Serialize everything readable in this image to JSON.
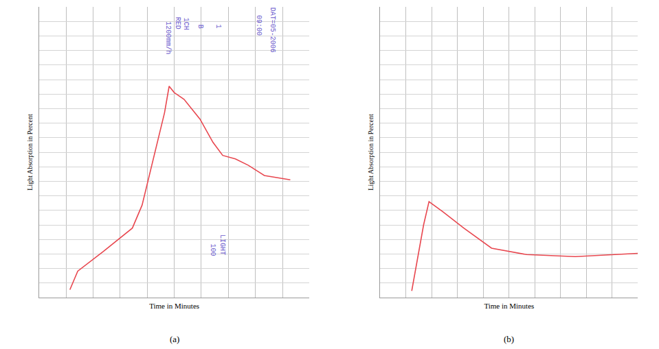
{
  "chart_data": [
    {
      "type": "line",
      "panel": "(a)",
      "x_label": "Time in Minutes",
      "y_label": "Light Absorption in Percent",
      "x": [
        11.4,
        14.3,
        23.8,
        34.5,
        38.1,
        42.9,
        46.4,
        48.1,
        50.0,
        53.6,
        59.5,
        64.3,
        67.9,
        72.6,
        77.4,
        83.3,
        92.9
      ],
      "values": [
        2.7,
        9.1,
        15.9,
        23.9,
        31.8,
        50.0,
        63.6,
        72.7,
        70.5,
        68.2,
        61.4,
        53.4,
        48.9,
        47.7,
        45.5,
        42.0,
        40.5
      ],
      "color": "#e8474f",
      "xlim": [
        0,
        100
      ],
      "ylim": [
        0,
        100
      ],
      "xticks": [
        0,
        10,
        20,
        30,
        40,
        50,
        60,
        70,
        80,
        90,
        100
      ],
      "yticks": [
        0,
        5,
        10,
        15,
        20,
        25,
        30,
        35,
        40,
        45,
        50,
        55,
        60,
        65,
        70,
        75,
        80,
        85,
        90,
        95,
        100
      ],
      "grid": true,
      "tick_labels": false,
      "annotations": [
        {
          "text": "1200mm/h",
          "x": 47.6,
          "y": 89.3
        },
        {
          "text": "RED",
          "x": 51.2,
          "y": 94.3
        },
        {
          "text": "1CH",
          "x": 54.3,
          "y": 94.3
        },
        {
          "text": "B",
          "x": 59.5,
          "y": 93.2
        },
        {
          "text": "1",
          "x": 66.2,
          "y": 93.2
        },
        {
          "text": "09:00",
          "x": 81.4,
          "y": 93.6
        },
        {
          "text": "DAT=05-2006",
          "x": 86.2,
          "y": 92.0
        },
        {
          "text": "100",
          "x": 64.3,
          "y": 16.4
        },
        {
          "text": "LIGHT",
          "x": 67.6,
          "y": 18.2
        }
      ],
      "annotation_color": "#6a5acd"
    },
    {
      "type": "line",
      "panel": "(b)",
      "x_label": "Time in Minutes",
      "y_label": "Light Absorption in Percent",
      "x": [
        12.2,
        14.9,
        16.8,
        18.9,
        24.3,
        32.4,
        43.2,
        56.8,
        75.7,
        100.0
      ],
      "values": [
        2.3,
        15.9,
        25.0,
        33.0,
        29.5,
        23.9,
        17.0,
        14.8,
        14.1,
        15.2
      ],
      "color": "#e8474f",
      "xlim": [
        0,
        100
      ],
      "ylim": [
        0,
        100
      ],
      "xticks": [
        0,
        10,
        20,
        30,
        40,
        50,
        60,
        70,
        80,
        90,
        100
      ],
      "yticks": [
        0,
        5,
        10,
        15,
        20,
        25,
        30,
        35,
        40,
        45,
        50,
        55,
        60,
        65,
        70,
        75,
        80,
        85,
        90,
        95,
        100
      ],
      "grid": true,
      "tick_labels": false
    }
  ]
}
